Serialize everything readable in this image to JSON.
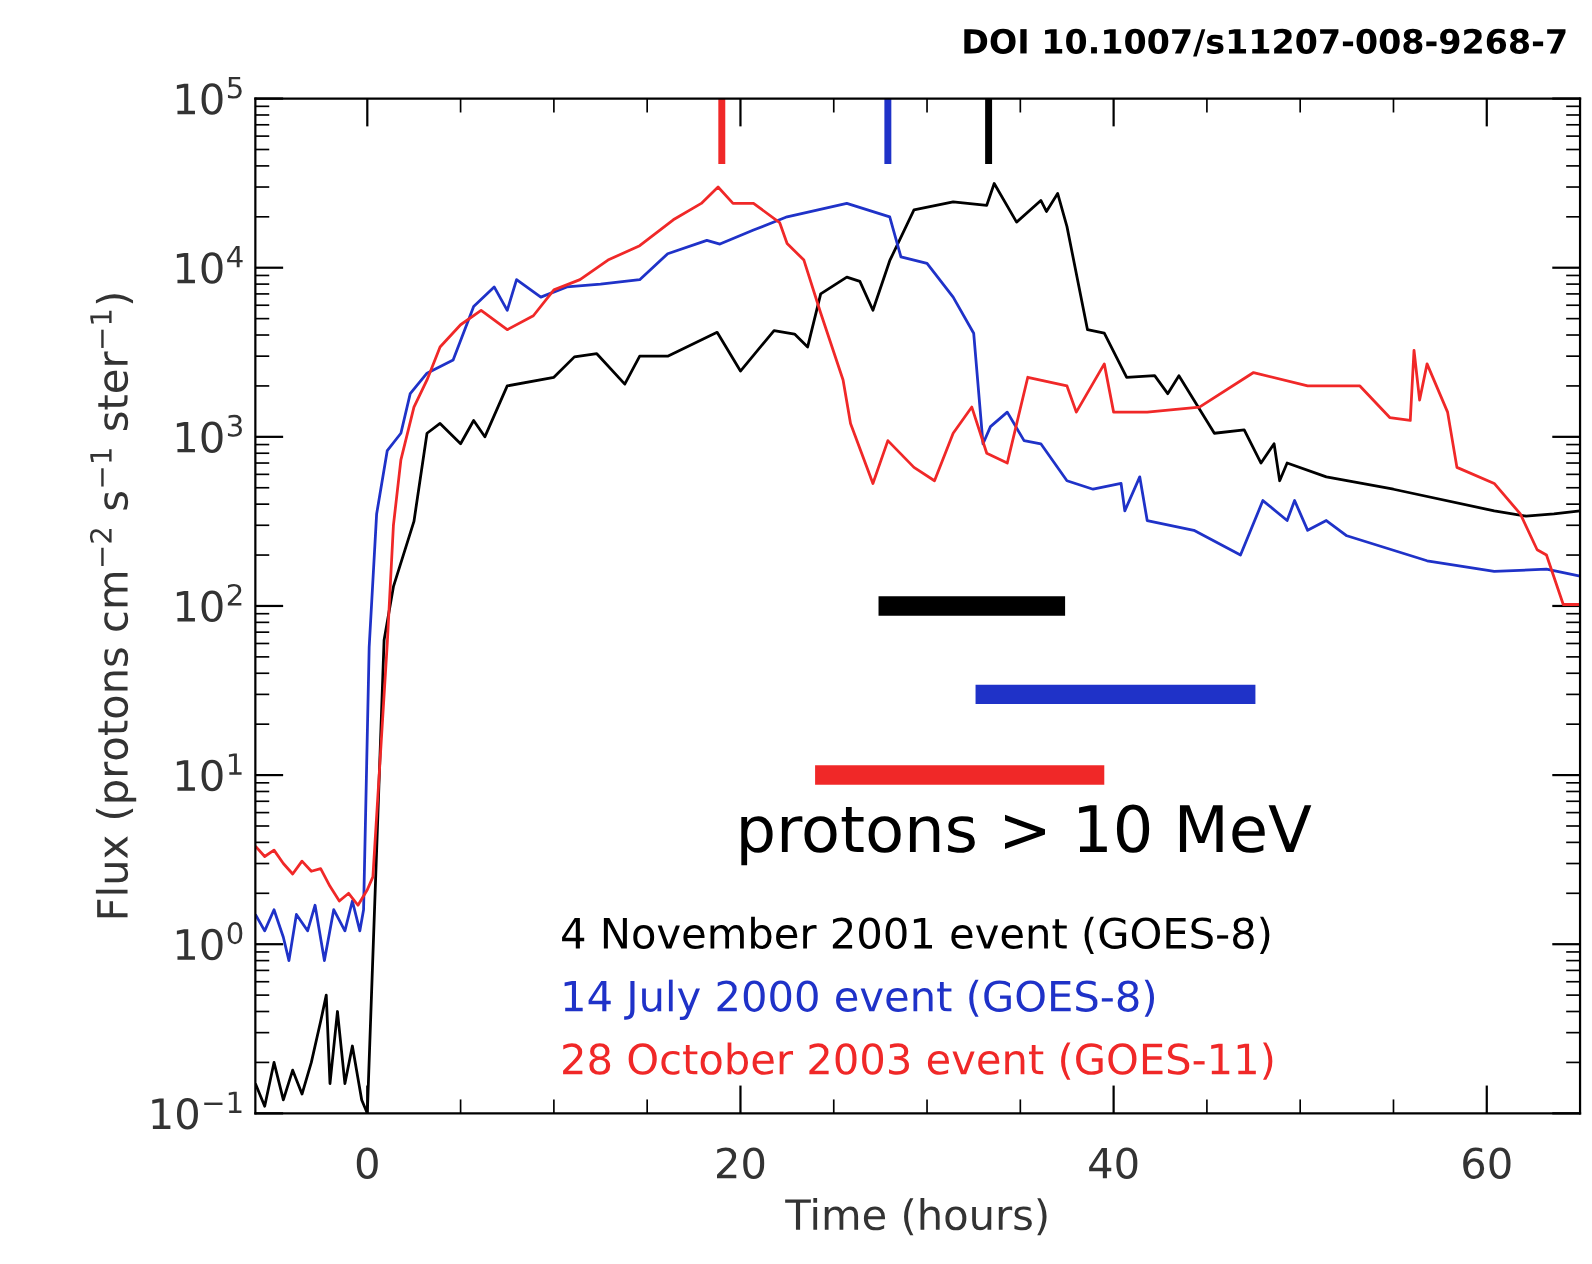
{
  "chart_data": {
    "type": "line",
    "xlabel": "Time (hours)",
    "ylabel": "Flux (protons cm$^{−2}$ s$^{−1}$ ster$^{−1}$)",
    "xlim": [
      -6,
      65
    ],
    "xticks": [
      0,
      {
        "value": 5,
        "label": null
      },
      {
        "value": 10,
        "label": null
      },
      {
        "value": 15,
        "label": null
      },
      20,
      {
        "value": 25,
        "label": null
      },
      {
        "value": 30,
        "label": null
      },
      {
        "value": 35,
        "label": null
      },
      40,
      {
        "value": 45,
        "label": null
      },
      {
        "value": 50,
        "label": null
      },
      {
        "value": 55,
        "label": null
      },
      60
    ],
    "ylim": [
      0.1,
      100000
    ],
    "yticks": [
      {
        "value": 0.1,
        "label": "10$^{−1}$"
      },
      {
        "value": 1,
        "label": "10$^{0}$"
      },
      {
        "value": 10,
        "label": "10$^{1}$"
      },
      {
        "value": 100,
        "label": "10$^{2}$"
      },
      {
        "value": 1000,
        "label": "10$^{3}$"
      },
      {
        "value": 10000,
        "label": "10$^{4}$"
      },
      {
        "value": 100000,
        "label": "10$^{5}$"
      }
    ],
    "log": "y",
    "grid": false,
    "legend": "bottom right",
    "annotations": [
      "protons > 10 MeV",
      "DOI 10.1007/s11207-008-9268-7"
    ],
    "series": [
      {
        "name": "4 November 2001 event (GOES-8)",
        "color": "#000000",
        "x": [
          -6,
          -5.5,
          -5,
          -4.5,
          -4,
          -3.5,
          -3,
          -2.5,
          -2.2,
          -2,
          -1.6,
          -1.2,
          -0.8,
          -0.3,
          0,
          0.9,
          1.4,
          2.5,
          3.2,
          3.9,
          5.0,
          5.7,
          6.3,
          7.5,
          10,
          11.1,
          12.3,
          13.8,
          14.6,
          16.1,
          18.75,
          20,
          21.8,
          22.9,
          23.6,
          24.3,
          25.7,
          26.4,
          27.1,
          28.0,
          29.3,
          31.4,
          33.2,
          33.6,
          34.8,
          36.1,
          36.4,
          37.0,
          37.5,
          38.6,
          39.5,
          40.7,
          42.2,
          42.9,
          43.5,
          45.4,
          47.0,
          47.9,
          48.6,
          48.9,
          49.3,
          51.4,
          55.0,
          60.4,
          62.1,
          63.6,
          65
        ],
        "values": [
          0.15,
          0.11,
          0.2,
          0.12,
          0.18,
          0.13,
          0.2,
          0.35,
          0.5,
          0.15,
          0.4,
          0.15,
          0.25,
          0.12,
          0.1,
          63,
          130,
          316,
          1050,
          1200,
          910,
          1250,
          1000,
          2000,
          2250,
          2970,
          3100,
          2050,
          3000,
          3000,
          4150,
          2450,
          4250,
          4050,
          3400,
          7000,
          8800,
          8300,
          5600,
          11000,
          22000,
          24500,
          23400,
          31500,
          18600,
          25000,
          21500,
          27500,
          17500,
          4300,
          4100,
          2250,
          2300,
          1800,
          2300,
          1050,
          1100,
          700,
          910,
          550,
          700,
          580,
          490,
          365,
          340,
          350,
          365
        ]
      },
      {
        "name": "14 July 2000 event (GOES-8)",
        "color": "#1f32c8",
        "x": [
          -6,
          -5.5,
          -5,
          -4.5,
          -4.2,
          -3.8,
          -3.2,
          -2.8,
          -2.3,
          -1.8,
          -1.2,
          -0.8,
          -0.4,
          -0.2,
          0.1,
          0.5,
          1.07,
          1.8,
          2.3,
          3.2,
          4.6,
          5.7,
          6.8,
          7.5,
          8.0,
          9.3,
          10.7,
          12.5,
          14.6,
          16.1,
          18.2,
          18.9,
          20.7,
          22.5,
          25.7,
          28.0,
          28.6,
          30.0,
          31.4,
          32.5,
          33.0,
          33.4,
          34.3,
          35.2,
          36.1,
          37.5,
          38.9,
          40.4,
          40.6,
          41.4,
          41.8,
          44.3,
          46.8,
          48.0,
          49.3,
          49.7,
          50.4,
          51.4,
          52.5,
          56.8,
          60.4,
          63.2,
          65
        ],
        "values": [
          1.5,
          1.2,
          1.6,
          1.1,
          0.8,
          1.5,
          1.2,
          1.7,
          0.8,
          1.6,
          1.2,
          1.8,
          1.2,
          1.6,
          57,
          350,
          830,
          1050,
          1800,
          2380,
          2850,
          5900,
          7700,
          5600,
          8500,
          6700,
          7700,
          8000,
          8500,
          12100,
          14500,
          13800,
          16700,
          20000,
          24000,
          20000,
          11600,
          10600,
          6700,
          4100,
          910,
          1150,
          1400,
          950,
          910,
          550,
          490,
          530,
          365,
          580,
          320,
          280,
          200,
          420,
          320,
          420,
          280,
          320,
          260,
          185,
          160,
          165,
          150
        ]
      },
      {
        "name": "28 October 2003 event (GOES-11)",
        "color": "#f02828",
        "x": [
          -6,
          -5.5,
          -5,
          -4.5,
          -4,
          -3.5,
          -3,
          -2.5,
          -2,
          -1.5,
          -1,
          -0.5,
          0,
          0.3,
          1.07,
          1.4,
          1.8,
          2.5,
          3.2,
          3.9,
          5.0,
          6.1,
          7.5,
          8.9,
          10,
          11.4,
          12.9,
          14.6,
          16.4,
          17.9,
          18.8,
          19.6,
          20.7,
          22.1,
          22.5,
          23.4,
          24.3,
          25.5,
          25.9,
          27.1,
          27.9,
          29.3,
          30.4,
          31.4,
          32.4,
          33.2,
          34.3,
          35.4,
          37.5,
          38.0,
          39.5,
          40.0,
          41.8,
          44.6,
          47.5,
          50.4,
          53.2,
          54.8,
          55.9,
          56.1,
          56.4,
          56.8,
          57.9,
          58.4,
          60.4,
          61.8,
          62.7,
          63.2,
          64.1,
          65
        ],
        "values": [
          3.8,
          3.3,
          3.6,
          3.0,
          2.6,
          3.1,
          2.7,
          2.8,
          2.2,
          1.8,
          2.0,
          1.7,
          2.1,
          2.5,
          60,
          300,
          730,
          1500,
          2170,
          3400,
          4600,
          5600,
          4300,
          5200,
          7400,
          8500,
          11100,
          13500,
          19200,
          24000,
          30000,
          24000,
          24000,
          18500,
          13900,
          11100,
          5400,
          2170,
          1200,
          530,
          950,
          660,
          550,
          1050,
          1500,
          800,
          700,
          2250,
          2000,
          1400,
          2700,
          1400,
          1400,
          1500,
          2400,
          2000,
          2000,
          1300,
          1250,
          3250,
          1650,
          2700,
          1400,
          660,
          530,
          350,
          215,
          200,
          102,
          102
        ]
      },
      {
        "color": "#f02828",
        "x": [
          19.0,
          19.0
        ],
        "values": [
          41000,
          100000
        ]
      },
      {
        "color": "#1f32c8",
        "x": [
          27.9,
          27.9
        ],
        "values": [
          41000,
          100000
        ]
      },
      {
        "color": "#000000",
        "x": [
          33.3,
          33.3
        ],
        "values": [
          41000,
          100000
        ]
      },
      {
        "color": "#000000",
        "x": [
          27.4,
          37.4
        ],
        "values": [
          100,
          100
        ]
      },
      {
        "color": "#1f32c8",
        "x": [
          32.6,
          47.6
        ],
        "values": [
          30,
          30
        ]
      },
      {
        "color": "#f02828",
        "x": [
          24.0,
          39.5
        ],
        "values": [
          10,
          10
        ]
      }
    ]
  }
}
